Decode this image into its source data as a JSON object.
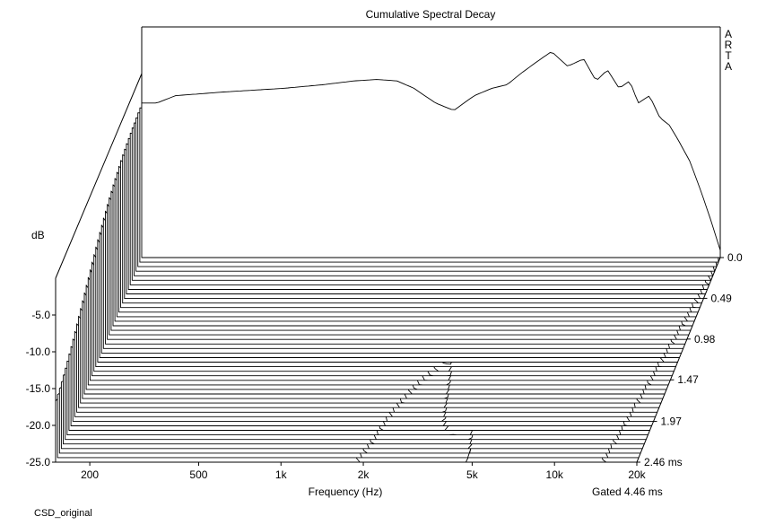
{
  "caption": "CSD_original",
  "chart_data": {
    "type": "waterfall",
    "title": "Cumulative Spectral Decay",
    "brand": "ARTA",
    "xlabel": "Frequency (Hz)",
    "ylabel": "dB",
    "zlabel": "ms",
    "gated_note": "Gated 4.46 ms",
    "x_scale": "log",
    "xlim": [
      150,
      20000
    ],
    "ylim": [
      -25,
      0
    ],
    "time_range": [
      0,
      2.46
    ],
    "x_ticks": [
      {
        "value": 200,
        "label": "200"
      },
      {
        "value": 500,
        "label": "500"
      },
      {
        "value": 1000,
        "label": "1k"
      },
      {
        "value": 2000,
        "label": "2k"
      },
      {
        "value": 5000,
        "label": "5k"
      },
      {
        "value": 10000,
        "label": "10k"
      },
      {
        "value": 20000,
        "label": "20k"
      }
    ],
    "y_ticks": [
      {
        "value": -5,
        "label": "-5.0"
      },
      {
        "value": -10,
        "label": "-10.0"
      },
      {
        "value": -15,
        "label": "-15.0"
      },
      {
        "value": -20,
        "label": "-20.0"
      },
      {
        "value": -25,
        "label": "-25.0"
      }
    ],
    "time_ticks": [
      {
        "value": 0.0,
        "label": "0.0"
      },
      {
        "value": 0.49,
        "label": "0.49"
      },
      {
        "value": 0.98,
        "label": "0.98"
      },
      {
        "value": 1.47,
        "label": "1.47"
      },
      {
        "value": 1.97,
        "label": "1.97"
      },
      {
        "value": 2.46,
        "label": "2.46 ms"
      }
    ],
    "slice_count": 46,
    "initial_response": {
      "frequency_hz": [
        170,
        200,
        300,
        500,
        700,
        900,
        1100,
        1300,
        1500,
        1800,
        2100,
        2500,
        2900,
        3300,
        3700,
        4200,
        4800,
        5500,
        6300,
        7000,
        7700,
        8500,
        9300,
        10000,
        11000,
        12000,
        13000,
        14000,
        15500,
        17000,
        18500,
        20000
      ],
      "db": [
        -4,
        -3,
        -2.5,
        -2,
        -1.5,
        -1,
        -0.8,
        -1,
        -2,
        -4,
        -5,
        -3,
        -2,
        -1.5,
        0,
        1.5,
        3,
        1,
        2,
        -1,
        0.5,
        -2,
        -1,
        -4,
        -3,
        -6,
        -7,
        -9,
        -12,
        -16,
        -20,
        -24
      ]
    },
    "decay_rate_db_per_ms": [
      {
        "frequency_hz": 200,
        "rate": 3
      },
      {
        "frequency_hz": 700,
        "rate": 4.5
      },
      {
        "frequency_hz": 2000,
        "rate": 9
      },
      {
        "frequency_hz": 3000,
        "rate": 16
      },
      {
        "frequency_hz": 4500,
        "rate": 11
      },
      {
        "frequency_hz": 6000,
        "rate": 4
      },
      {
        "frequency_hz": 10000,
        "rate": 4.5
      },
      {
        "frequency_hz": 15000,
        "rate": 6
      },
      {
        "frequency_hz": 20000,
        "rate": 8
      }
    ],
    "grid": false
  }
}
